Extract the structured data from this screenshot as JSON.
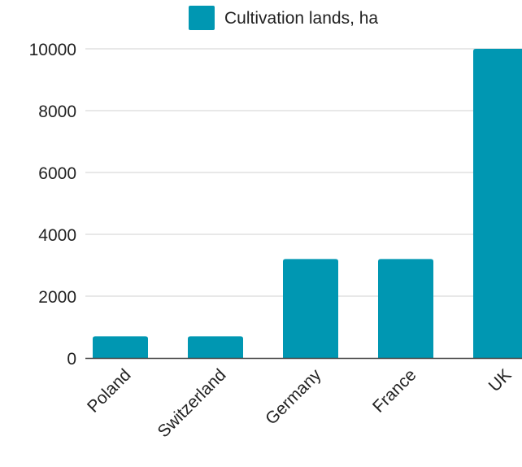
{
  "chart_data": {
    "type": "bar",
    "categories": [
      "Poland",
      "Switzerland",
      "Germany",
      "France",
      "UK"
    ],
    "series": [
      {
        "name": "Cultivation lands, ha",
        "values": [
          700,
          700,
          3200,
          3200,
          10000
        ]
      }
    ],
    "ylim": [
      0,
      10000
    ],
    "yticks": [
      0,
      2000,
      4000,
      6000,
      8000,
      10000
    ],
    "xlabel": "",
    "ylabel": "",
    "grid": true,
    "legend_position": "top",
    "colors": {
      "bar": "#0097b2",
      "grid": "#d9d9d9",
      "axis": "#444444",
      "text": "#222222"
    }
  }
}
